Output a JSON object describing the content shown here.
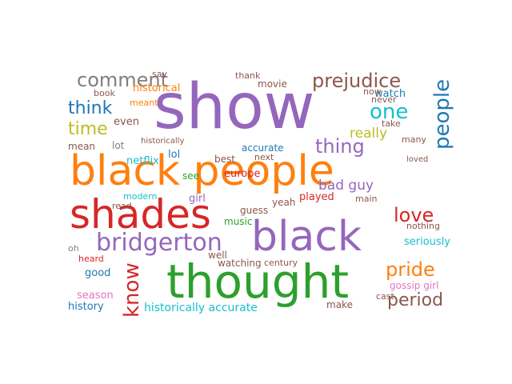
{
  "words": [
    {
      "text": "show"
    },
    {
      "text": "black people"
    },
    {
      "text": "shades"
    },
    {
      "text": "black"
    },
    {
      "text": "thought"
    },
    {
      "text": "prejudice"
    },
    {
      "text": "comment"
    },
    {
      "text": "think"
    },
    {
      "text": "time"
    },
    {
      "text": "people"
    },
    {
      "text": "one"
    },
    {
      "text": "thing"
    },
    {
      "text": "bridgerton"
    },
    {
      "text": "love"
    },
    {
      "text": "pride"
    },
    {
      "text": "period"
    },
    {
      "text": "know"
    },
    {
      "text": "historically accurate"
    },
    {
      "text": "bad guy"
    },
    {
      "text": "really"
    },
    {
      "text": "seriously"
    },
    {
      "text": "gossip girl"
    },
    {
      "text": "historical"
    },
    {
      "text": "netflix"
    },
    {
      "text": "watch"
    },
    {
      "text": "take"
    },
    {
      "text": "many"
    },
    {
      "text": "played"
    },
    {
      "text": "history"
    },
    {
      "text": "season"
    },
    {
      "text": "good"
    },
    {
      "text": "heard"
    },
    {
      "text": "oh"
    },
    {
      "text": "lot"
    },
    {
      "text": "mean"
    },
    {
      "text": "even"
    },
    {
      "text": "meant"
    },
    {
      "text": "book"
    },
    {
      "text": "say"
    },
    {
      "text": "lol"
    },
    {
      "text": "historically"
    },
    {
      "text": "see"
    },
    {
      "text": "modern"
    },
    {
      "text": "read"
    },
    {
      "text": "girl"
    },
    {
      "text": "music"
    },
    {
      "text": "europe"
    },
    {
      "text": "best"
    },
    {
      "text": "accurate"
    },
    {
      "text": "thank"
    },
    {
      "text": "movie"
    },
    {
      "text": "next"
    },
    {
      "text": "yeah"
    },
    {
      "text": "guess"
    },
    {
      "text": "watching"
    },
    {
      "text": "century"
    },
    {
      "text": "well"
    },
    {
      "text": "main"
    },
    {
      "text": "nothing"
    },
    {
      "text": "never"
    },
    {
      "text": "now"
    },
    {
      "text": "loved"
    },
    {
      "text": "make"
    },
    {
      "text": "cast"
    }
  ]
}
